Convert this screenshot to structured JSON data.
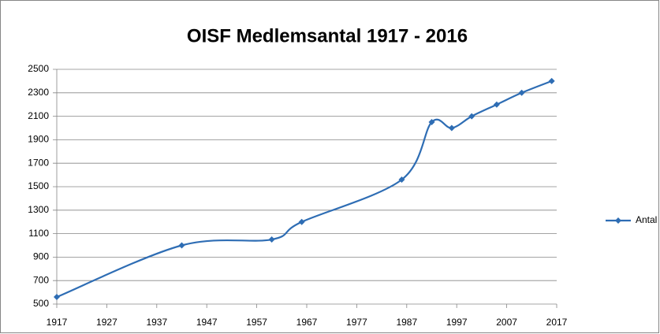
{
  "chart_data": {
    "type": "line",
    "title": "OISF Medlemsantal 1917 - 2016",
    "x": [
      1917,
      1942,
      1960,
      1966,
      1986,
      1992,
      1996,
      2000,
      2005,
      2010,
      2016
    ],
    "series": [
      {
        "name": "Antal",
        "color": "#2e6db4",
        "values": [
          560,
          1000,
          1050,
          1200,
          1560,
          2050,
          2000,
          2100,
          2200,
          2300,
          2400
        ]
      }
    ],
    "xlim": [
      1917,
      2017
    ],
    "xticks": [
      1917,
      1927,
      1937,
      1947,
      1957,
      1967,
      1977,
      1987,
      1997,
      2007,
      2017
    ],
    "ylim": [
      500,
      2500
    ],
    "yticks": [
      500,
      700,
      900,
      1100,
      1300,
      1500,
      1700,
      1900,
      2100,
      2300,
      2500
    ],
    "grid": true,
    "legend": "right",
    "smooth": true
  }
}
